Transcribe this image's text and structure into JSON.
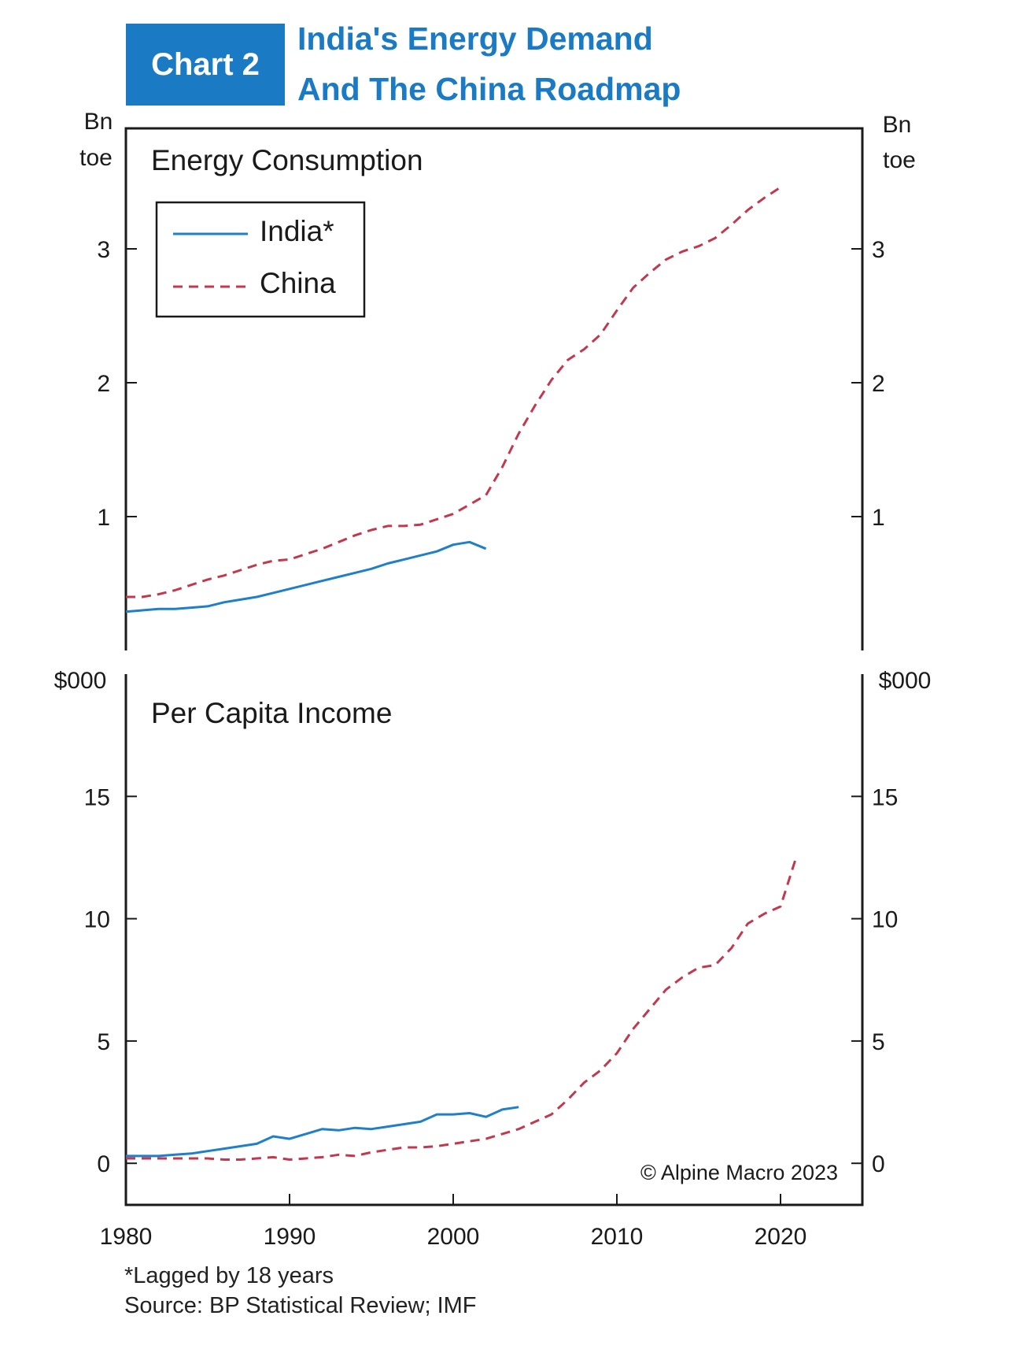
{
  "header": {
    "badge": "Chart 2",
    "title_line_1": "India's Energy Demand",
    "title_line_2": "And The China Roadmap"
  },
  "footer": {
    "note": "*Lagged by 18 years",
    "source": "Source: BP Statistical Review; IMF"
  },
  "colors": {
    "india": "#1f7fc8",
    "china": "#c0394f",
    "accent": "#1a7ac4"
  },
  "chart_data": [
    {
      "type": "line",
      "title": "Energy Consumption",
      "unit_label_lines": [
        "Bn",
        "toe"
      ],
      "ylim": [
        0,
        3.9
      ],
      "xlim": [
        1980,
        2025
      ],
      "yticks": [
        1,
        2,
        3
      ],
      "legend": {
        "placement": "top-left",
        "entries": [
          "India*",
          "China"
        ]
      },
      "series": [
        {
          "name": "India*",
          "style": "solid",
          "x": [
            1980,
            1981,
            1982,
            1983,
            1984,
            1985,
            1986,
            1987,
            1988,
            1989,
            1990,
            1991,
            1992,
            1993,
            1994,
            1995,
            1996,
            1997,
            1998,
            1999,
            2000,
            2001,
            2002
          ],
          "y": [
            0.29,
            0.3,
            0.31,
            0.31,
            0.32,
            0.33,
            0.36,
            0.38,
            0.4,
            0.43,
            0.46,
            0.49,
            0.52,
            0.55,
            0.58,
            0.61,
            0.65,
            0.68,
            0.71,
            0.74,
            0.79,
            0.81,
            0.76
          ]
        },
        {
          "name": "China",
          "style": "dashed",
          "x": [
            1980,
            1981,
            1982,
            1983,
            1984,
            1985,
            1986,
            1987,
            1988,
            1989,
            1990,
            1991,
            1992,
            1993,
            1994,
            1995,
            1996,
            1997,
            1998,
            1999,
            2000,
            2001,
            2002,
            2003,
            2004,
            2005,
            2006,
            2007,
            2008,
            2009,
            2010,
            2011,
            2012,
            2013,
            2014,
            2015,
            2016,
            2017,
            2018,
            2019,
            2020
          ],
          "y": [
            0.4,
            0.4,
            0.42,
            0.45,
            0.49,
            0.53,
            0.56,
            0.6,
            0.64,
            0.67,
            0.68,
            0.72,
            0.76,
            0.81,
            0.86,
            0.9,
            0.93,
            0.93,
            0.94,
            0.98,
            1.02,
            1.09,
            1.16,
            1.37,
            1.62,
            1.83,
            2.02,
            2.17,
            2.25,
            2.36,
            2.54,
            2.71,
            2.82,
            2.92,
            2.98,
            3.02,
            3.08,
            3.18,
            3.29,
            3.38,
            3.46
          ]
        }
      ]
    },
    {
      "type": "line",
      "title": "Per Capita Income",
      "unit_label": "$000",
      "ylim": [
        -1.7,
        20
      ],
      "xlim": [
        1980,
        2025
      ],
      "yticks": [
        0,
        5,
        10,
        15
      ],
      "xticks": [
        1980,
        1990,
        2000,
        2010,
        2020
      ],
      "annotation": "© Alpine Macro 2023",
      "series": [
        {
          "name": "India*",
          "style": "solid",
          "x": [
            1980,
            1981,
            1982,
            1983,
            1984,
            1985,
            1986,
            1987,
            1988,
            1989,
            1990,
            1991,
            1992,
            1993,
            1994,
            1995,
            1996,
            1997,
            1998,
            1999,
            2000,
            2001,
            2002,
            2003,
            2004
          ],
          "y": [
            0.3,
            0.3,
            0.3,
            0.35,
            0.4,
            0.5,
            0.6,
            0.7,
            0.8,
            1.1,
            1.0,
            1.2,
            1.4,
            1.35,
            1.45,
            1.4,
            1.5,
            1.6,
            1.7,
            2.0,
            2.0,
            2.05,
            1.9,
            2.2,
            2.3
          ]
        },
        {
          "name": "China",
          "style": "dashed",
          "x": [
            1980,
            1981,
            1982,
            1983,
            1984,
            1985,
            1986,
            1987,
            1988,
            1989,
            1990,
            1991,
            1992,
            1993,
            1994,
            1995,
            1996,
            1997,
            1998,
            1999,
            2000,
            2001,
            2002,
            2003,
            2004,
            2005,
            2006,
            2007,
            2008,
            2009,
            2010,
            2011,
            2012,
            2013,
            2014,
            2015,
            2016,
            2017,
            2018,
            2019,
            2020,
            2021
          ],
          "y": [
            0.2,
            0.2,
            0.2,
            0.2,
            0.2,
            0.2,
            0.15,
            0.15,
            0.2,
            0.25,
            0.15,
            0.2,
            0.25,
            0.35,
            0.3,
            0.45,
            0.55,
            0.65,
            0.65,
            0.7,
            0.8,
            0.9,
            1.0,
            1.2,
            1.4,
            1.7,
            2.0,
            2.6,
            3.3,
            3.8,
            4.5,
            5.5,
            6.3,
            7.1,
            7.6,
            8.0,
            8.1,
            8.8,
            9.8,
            10.2,
            10.5,
            12.6
          ]
        }
      ]
    }
  ]
}
